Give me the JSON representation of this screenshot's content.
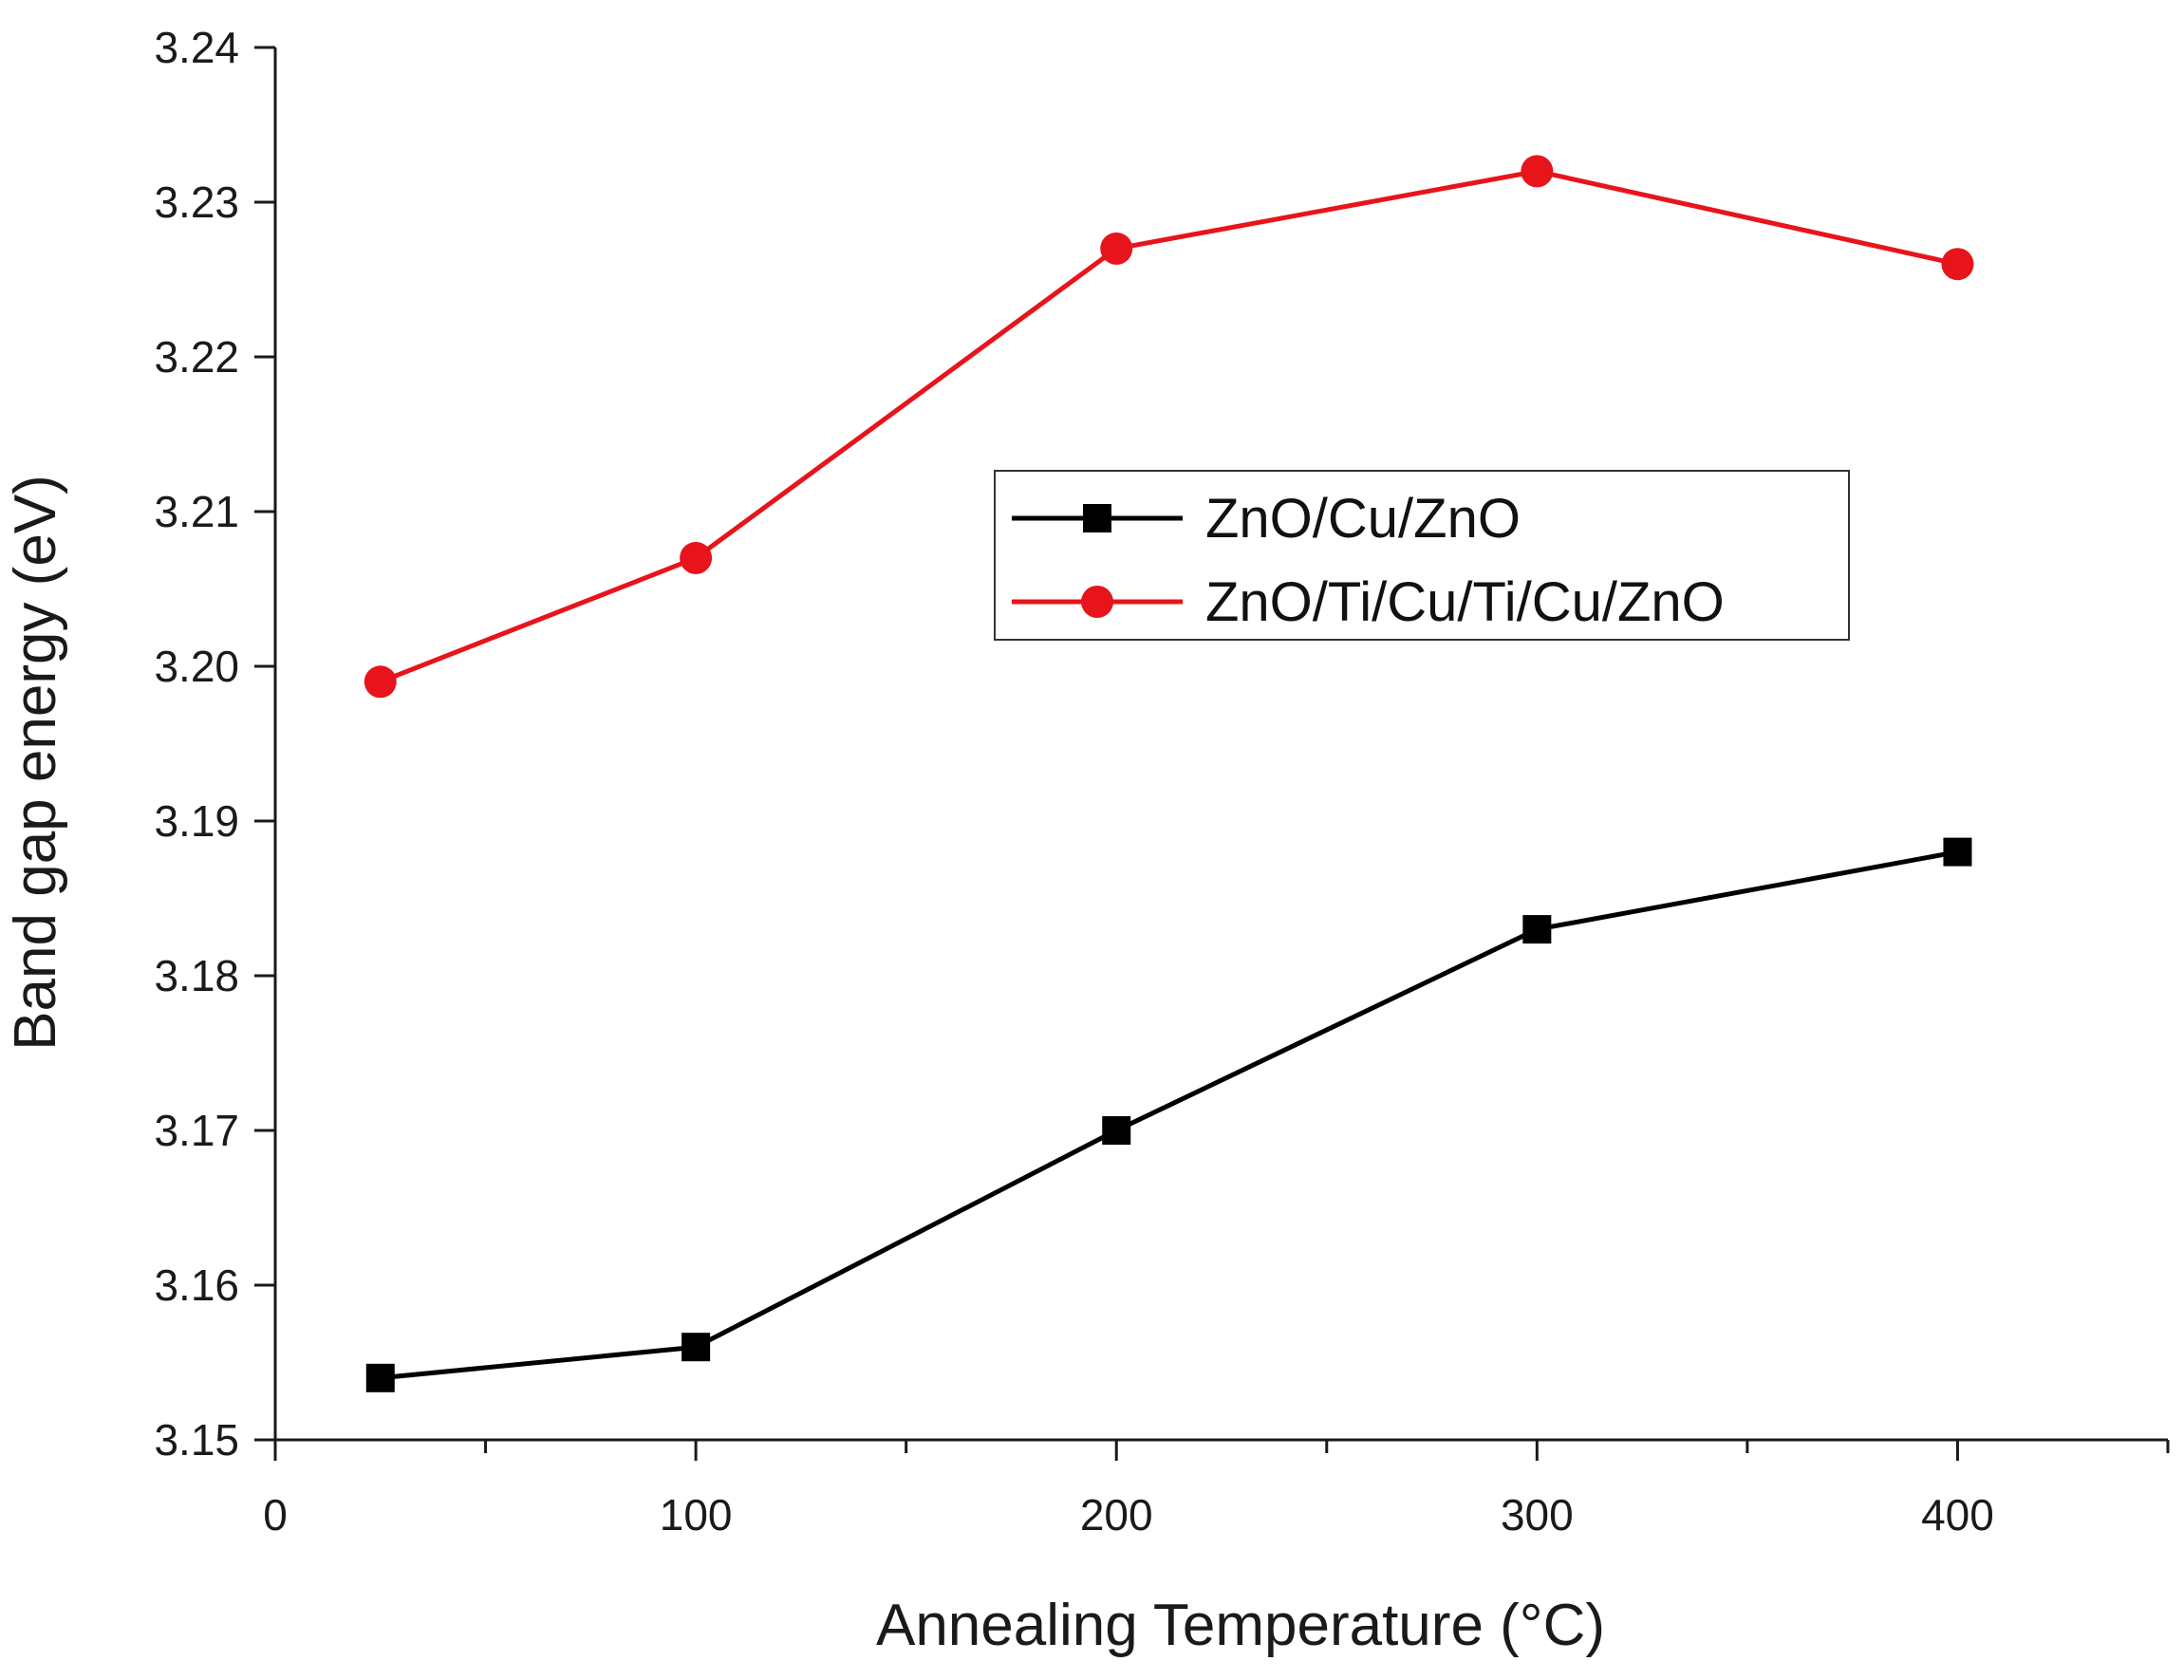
{
  "chart_data": {
    "type": "line",
    "title": "",
    "xlabel": "Annealing Temperature (°C)",
    "ylabel": "Band gap energy (eV)",
    "xlim": [
      0,
      450
    ],
    "ylim": [
      3.15,
      3.24
    ],
    "x_ticks": [
      0,
      100,
      200,
      300,
      400
    ],
    "x_tick_labels": [
      "0",
      "100",
      "200",
      "300",
      "400"
    ],
    "x_minor_ticks": [
      50,
      150,
      250,
      350,
      450
    ],
    "y_ticks": [
      3.15,
      3.16,
      3.17,
      3.18,
      3.19,
      3.2,
      3.21,
      3.22,
      3.23,
      3.24
    ],
    "y_tick_labels": [
      "3.15",
      "3.16",
      "3.17",
      "3.18",
      "3.19",
      "3.20",
      "3.21",
      "3.22",
      "3.23",
      "3.24"
    ],
    "grid": false,
    "legend_position": "center-right",
    "x": [
      25,
      100,
      200,
      300,
      400
    ],
    "series": [
      {
        "name": "ZnO/Cu/ZnO",
        "color": "#000000",
        "marker": "square",
        "values": [
          3.154,
          3.156,
          3.17,
          3.183,
          3.188
        ]
      },
      {
        "name": "ZnO/Ti/Cu/Ti/Cu/ZnO",
        "color": "#e8141b",
        "marker": "circle",
        "values": [
          3.199,
          3.207,
          3.227,
          3.232,
          3.226
        ]
      }
    ]
  }
}
